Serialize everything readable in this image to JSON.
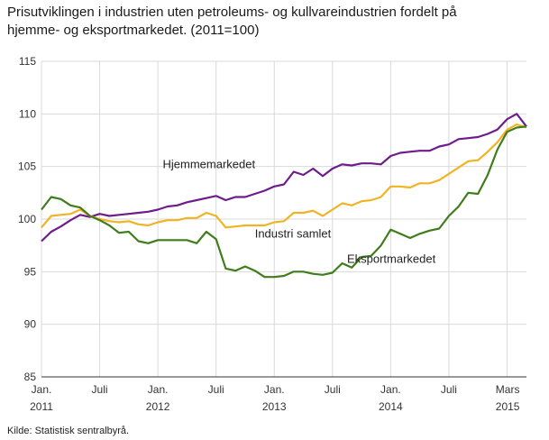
{
  "title_lines": [
    "Prisutviklingen i industrien uten petroleums- og kullvareindustrien fordelt på",
    "hjemme- og eksportmarkedet. (2011=100)"
  ],
  "source": "Kilde: Statistisk sentralbyrå.",
  "chart_data": {
    "type": "line",
    "title": "Prisutviklingen i industrien uten petroleums- og kullvareindustrien fordelt på hjemme- og eksportmarkedet. (2011=100)",
    "ylim": [
      85,
      115
    ],
    "yticks": [
      85,
      90,
      95,
      100,
      105,
      110,
      115
    ],
    "xticks": [
      {
        "line1": "Jan.",
        "line2": "2011"
      },
      {
        "line1": "Juli",
        "line2": ""
      },
      {
        "line1": "Jan.",
        "line2": "2012"
      },
      {
        "line1": "Juli",
        "line2": ""
      },
      {
        "line1": "Jan.",
        "line2": "2013"
      },
      {
        "line1": "Juli",
        "line2": ""
      },
      {
        "line1": "Jan.",
        "line2": "2014"
      },
      {
        "line1": "Juli",
        "line2": ""
      },
      {
        "line1": "Mars",
        "line2": "2015"
      }
    ],
    "grid": true,
    "x": [
      "2011-01",
      "2011-02",
      "2011-03",
      "2011-04",
      "2011-05",
      "2011-06",
      "2011-07",
      "2011-08",
      "2011-09",
      "2011-10",
      "2011-11",
      "2011-12",
      "2012-01",
      "2012-02",
      "2012-03",
      "2012-04",
      "2012-05",
      "2012-06",
      "2012-07",
      "2012-08",
      "2012-09",
      "2012-10",
      "2012-11",
      "2012-12",
      "2013-01",
      "2013-02",
      "2013-03",
      "2013-04",
      "2013-05",
      "2013-06",
      "2013-07",
      "2013-08",
      "2013-09",
      "2013-10",
      "2013-11",
      "2013-12",
      "2014-01",
      "2014-02",
      "2014-03",
      "2014-04",
      "2014-05",
      "2014-06",
      "2014-07",
      "2014-08",
      "2014-09",
      "2014-10",
      "2014-11",
      "2014-12",
      "2015-01",
      "2015-02",
      "2015-03"
    ],
    "series": [
      {
        "name": "Hjemmemarkedet",
        "color": "#6e1c8c",
        "values": [
          97.9,
          98.8,
          99.3,
          99.9,
          100.4,
          100.2,
          100.5,
          100.3,
          100.4,
          100.5,
          100.6,
          100.7,
          100.9,
          101.2,
          101.3,
          101.6,
          101.8,
          102.0,
          102.2,
          101.8,
          102.1,
          102.1,
          102.4,
          102.7,
          103.1,
          103.3,
          104.5,
          104.2,
          104.8,
          104.1,
          104.8,
          105.2,
          105.1,
          105.3,
          105.3,
          105.2,
          106.0,
          106.3,
          106.4,
          106.5,
          106.5,
          106.9,
          107.1,
          107.6,
          107.7,
          107.8,
          108.1,
          108.5,
          109.5,
          110.0,
          108.8
        ]
      },
      {
        "name": "Industri samlet",
        "color": "#f0b323",
        "values": [
          99.2,
          100.3,
          100.4,
          100.5,
          100.9,
          100.3,
          100.0,
          99.8,
          99.7,
          99.8,
          99.5,
          99.4,
          99.7,
          99.9,
          99.9,
          100.1,
          100.1,
          100.6,
          100.3,
          99.2,
          99.3,
          99.4,
          99.4,
          99.4,
          99.7,
          99.8,
          100.6,
          100.6,
          100.8,
          100.3,
          100.9,
          101.5,
          101.3,
          101.7,
          101.8,
          102.1,
          103.1,
          103.1,
          103.0,
          103.4,
          103.4,
          103.7,
          104.3,
          104.9,
          105.5,
          105.6,
          106.4,
          107.3,
          108.5,
          109.0,
          108.7
        ]
      },
      {
        "name": "Eksportmarkedet",
        "color": "#3f7d1c",
        "values": [
          100.9,
          102.1,
          101.9,
          101.3,
          101.1,
          100.3,
          99.9,
          99.4,
          98.7,
          98.8,
          97.9,
          97.7,
          98.0,
          98.0,
          98.0,
          98.0,
          97.7,
          98.8,
          98.1,
          95.3,
          95.1,
          95.5,
          95.1,
          94.5,
          94.5,
          94.6,
          95.0,
          95.0,
          94.8,
          94.7,
          94.9,
          95.8,
          95.4,
          96.4,
          96.5,
          97.5,
          99.0,
          98.6,
          98.2,
          98.6,
          98.9,
          99.1,
          100.3,
          101.2,
          102.5,
          102.4,
          104.2,
          106.6,
          108.3,
          108.7,
          108.8
        ]
      }
    ],
    "annotations": [
      {
        "text": "Hjemmemarkedet",
        "x_index": 12.5,
        "y": 105.2
      },
      {
        "text": "Industri samlet",
        "x_index": 22.0,
        "y": 98.6
      },
      {
        "text": "Eksportmarkedet",
        "x_index": 31.5,
        "y": 96.2
      }
    ]
  }
}
